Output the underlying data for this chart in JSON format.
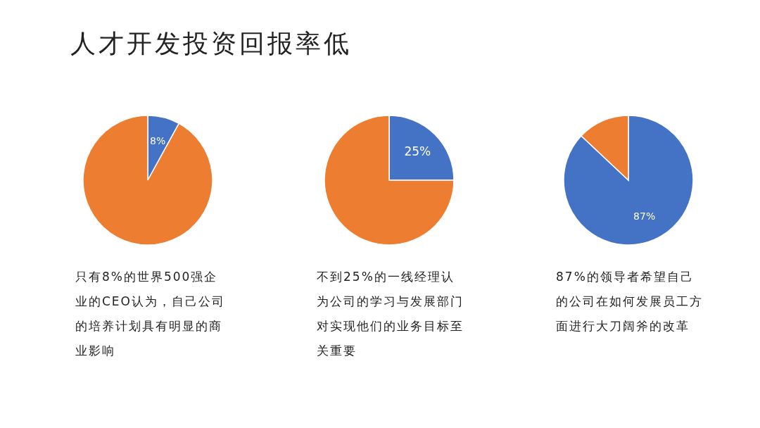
{
  "chart_data": [
    {
      "type": "pie",
      "title": "人才开发投资回报率低",
      "categories": [
        null,
        null
      ],
      "values": [
        8,
        92
      ],
      "colors": [
        "#4472c4",
        "#ed7d31"
      ],
      "value_labels": [
        "8%",
        null
      ],
      "annotations": [
        "只有8%的世界500强企业的CEO认为，自己公司的培养计划具有明显的商业影响"
      ]
    },
    {
      "type": "pie",
      "categories": [
        null,
        null
      ],
      "values": [
        25,
        75
      ],
      "colors": [
        "#4472c4",
        "#ed7d31"
      ],
      "value_labels": [
        "25%",
        null
      ],
      "annotations": [
        "不到25%的一线经理认为公司的学习与发展部门对实现他们的业务目标至关重要"
      ]
    },
    {
      "type": "pie",
      "categories": [
        null,
        null
      ],
      "values": [
        87,
        13
      ],
      "colors": [
        "#4472c4",
        "#ed7d31"
      ],
      "value_labels": [
        "87%",
        null
      ],
      "annotations": [
        "87%的领导者希望自己的公司在如何发展员工方面进行大刀阔斧的改革"
      ]
    }
  ]
}
